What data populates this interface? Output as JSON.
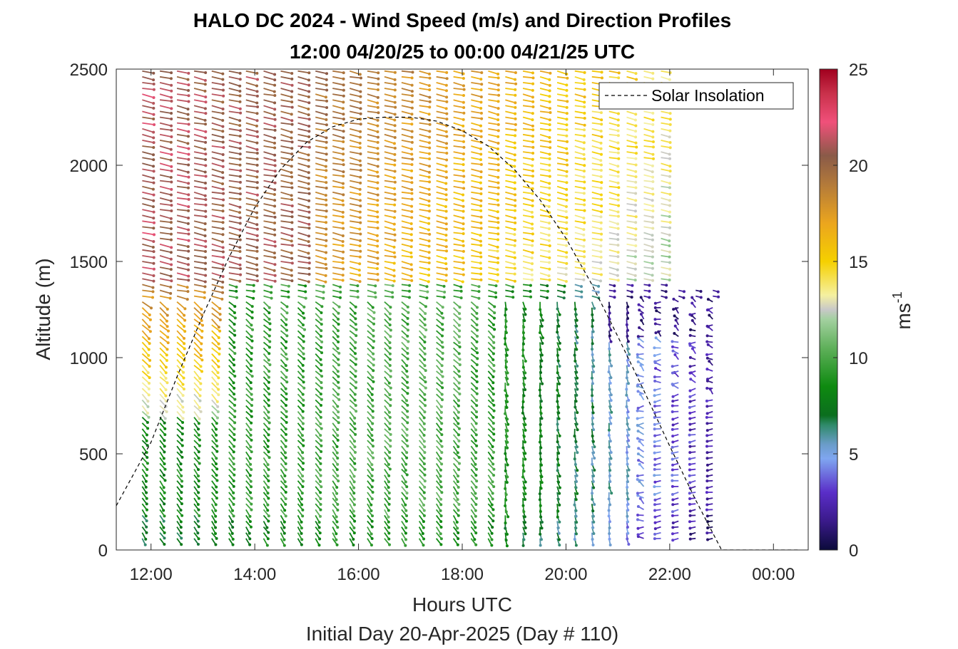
{
  "chart_data": {
    "type": "quiver",
    "title": "HALO DC 2024 - Wind Speed (m/s) and Direction Profiles",
    "subtitle": "12:00 04/20/25 to 00:00 04/21/25  UTC",
    "xlabel": "Hours UTC",
    "xlabel2": "Initial Day 20-Apr-2025 (Day # 110)",
    "ylabel": "Altitude (m)",
    "xlim": [
      11.33,
      24.67
    ],
    "ylim": [
      0,
      2500
    ],
    "x_ticks": [
      12,
      14,
      16,
      18,
      20,
      22,
      24
    ],
    "x_tick_labels": [
      "12:00",
      "14:00",
      "16:00",
      "18:00",
      "20:00",
      "22:00",
      "00:00"
    ],
    "y_ticks": [
      0,
      500,
      1000,
      1500,
      2000,
      2500
    ],
    "y_tick_labels": [
      "0",
      "500",
      "1000",
      "1500",
      "2000",
      "2500"
    ],
    "colorbar": {
      "label": "ms",
      "label_superscript": "-1",
      "range": [
        0,
        25
      ],
      "ticks": [
        0,
        5,
        10,
        15,
        20,
        25
      ],
      "tick_labels": [
        "0",
        "5",
        "10",
        "15",
        "20",
        "25"
      ]
    },
    "legend": {
      "entries": [
        "Solar Insolation"
      ],
      "position": "top-right"
    },
    "profile_times_hours": [
      11.83,
      12.17,
      12.5,
      12.83,
      13.17,
      13.5,
      13.83,
      14.17,
      14.5,
      14.83,
      15.17,
      15.5,
      15.83,
      16.17,
      16.5,
      16.83,
      17.17,
      17.5,
      17.83,
      18.17,
      18.5,
      18.83,
      19.17,
      19.5,
      19.83,
      20.17,
      20.5,
      20.83,
      21.17,
      21.5,
      21.83,
      22.17,
      22.5,
      22.83
    ],
    "altitude_range_m": [
      60,
      2500
    ],
    "altitude_step_m": 30,
    "solar_insolation_curve": {
      "x": [
        11.33,
        12.0,
        12.5,
        13.0,
        13.5,
        14.0,
        14.5,
        15.0,
        15.5,
        16.0,
        16.5,
        17.0,
        17.5,
        18.0,
        18.5,
        19.0,
        19.5,
        20.0,
        20.5,
        21.0,
        21.5,
        22.0,
        22.5,
        23.0,
        23.5,
        24.0,
        24.5
      ],
      "y": [
        230,
        560,
        900,
        1220,
        1520,
        1780,
        1980,
        2120,
        2200,
        2240,
        2250,
        2250,
        2230,
        2180,
        2100,
        1980,
        1820,
        1620,
        1380,
        1110,
        830,
        540,
        260,
        0,
        0,
        0,
        0
      ]
    }
  }
}
